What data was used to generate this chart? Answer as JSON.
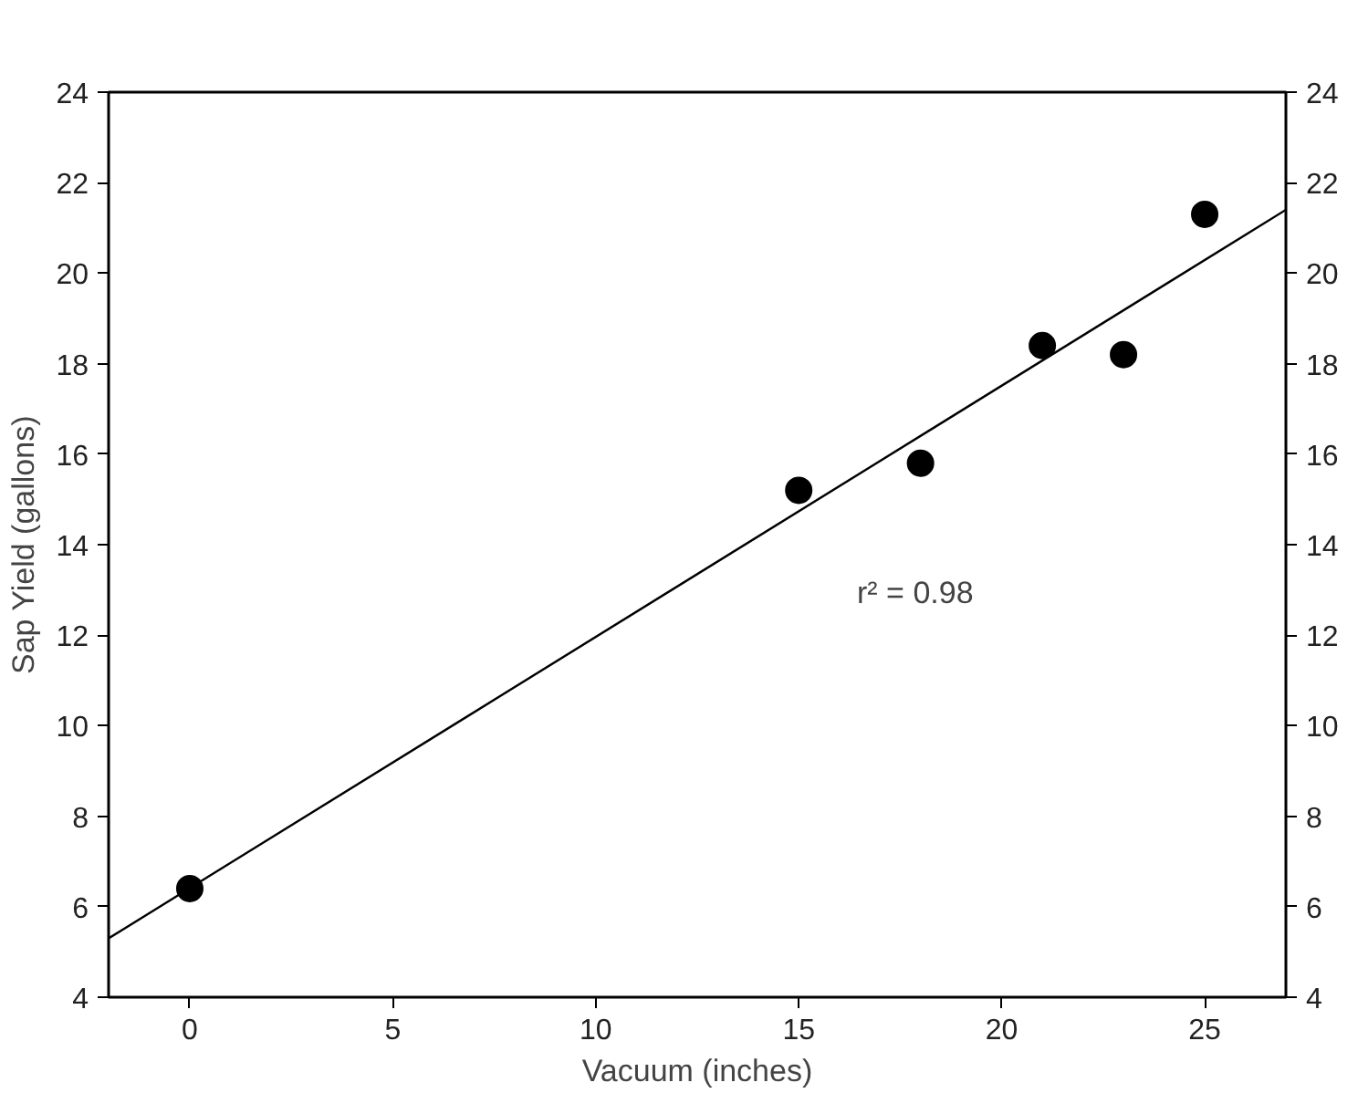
{
  "chart_data": {
    "type": "scatter",
    "xlabel": "Vacuum (inches)",
    "ylabel": "Sap Yield (gallons)",
    "xlim": [
      -2,
      27
    ],
    "xticks": [
      0,
      5,
      10,
      15,
      20,
      25
    ],
    "ylim": [
      4,
      24
    ],
    "yticks": [
      4,
      6,
      8,
      10,
      12,
      14,
      16,
      18,
      20,
      22,
      24
    ],
    "y2lim": [
      4,
      24
    ],
    "y2ticks": [
      4,
      6,
      8,
      10,
      12,
      14,
      16,
      18,
      20,
      22,
      24
    ],
    "series": [
      {
        "color": "#000000",
        "marker": "circle",
        "x": [
          0,
          15,
          18,
          21,
          23,
          25
        ],
        "values": [
          6.4,
          15.2,
          15.8,
          18.4,
          18.2,
          21.3
        ]
      },
      {
        "type": "line",
        "color": "#000000",
        "marker": "none",
        "line_style": "solid",
        "x": [
          -2,
          27
        ],
        "values": [
          5.3,
          21.4
        ]
      }
    ],
    "annotations": [
      "r² = 0.98"
    ],
    "grid": false
  }
}
